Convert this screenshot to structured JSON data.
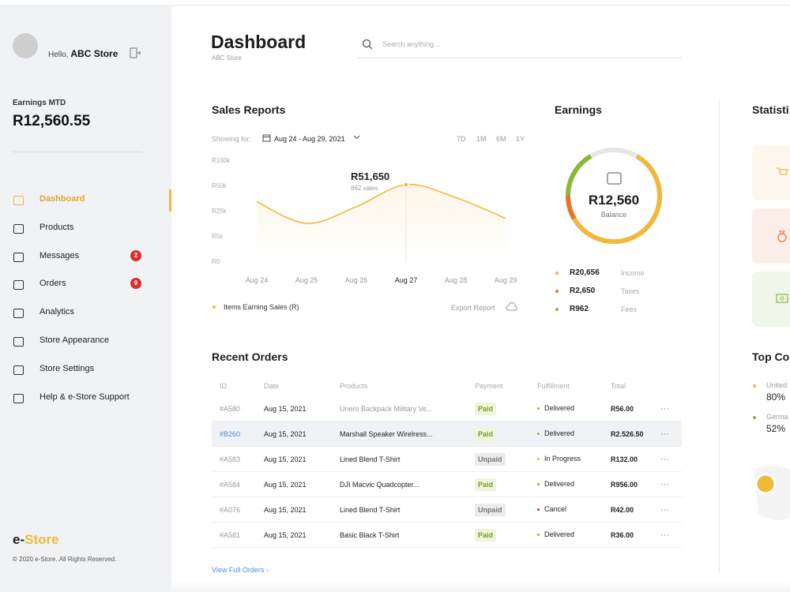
{
  "sidebar": {
    "greeting": "Hello,",
    "store": "ABC Store",
    "earnings_label": "Earnings MTD",
    "earnings_value": "R12,560.55",
    "nav": [
      {
        "label": "Dashboard"
      },
      {
        "label": "Products"
      },
      {
        "label": "Messages",
        "badge": "2"
      },
      {
        "label": "Orders",
        "badge": "9"
      },
      {
        "label": "Analytics"
      },
      {
        "label": "Store Appearance"
      },
      {
        "label": "Store Settings"
      },
      {
        "label": "Help & e-Store Support"
      }
    ],
    "brand_prefix": "e-",
    "brand_name": "Store",
    "copyright": "© 2020 e-Store..All Rights Reserved."
  },
  "header": {
    "title": "Dashboard",
    "subtitle": "ABC Store",
    "search_placeholder": "Search anything..."
  },
  "sales": {
    "title": "Sales Reports",
    "showing_for": "Showing for:",
    "date_range": "Aug 24 - Aug 29, 2021",
    "ranges": [
      "7D",
      "1M",
      "6M",
      "1Y"
    ],
    "export": "Export Report",
    "chart_data": {
      "type": "line",
      "categories": [
        "Aug 24",
        "Aug 25",
        "Aug 26",
        "Aug 27",
        "Aug 28",
        "Aug 29"
      ],
      "series": [
        {
          "name": "Items Earning Sales (R)",
          "color": "#f0b93a",
          "values": [
            34000,
            15000,
            29000,
            51650,
            38000,
            19000
          ]
        }
      ],
      "annotation": {
        "text": "R51,650",
        "subtext": "862 sales"
      },
      "ylim": [
        0,
        100000
      ],
      "yticks": [
        {
          "value": 0,
          "label": "R0"
        },
        {
          "value": 5000,
          "label": "R5k"
        },
        {
          "value": 25000,
          "label": "R25k"
        },
        {
          "value": 50000,
          "label": "R50k"
        },
        {
          "value": 100000,
          "label": "R100k"
        }
      ]
    }
  },
  "earnings": {
    "title": "Earnings",
    "balance_value": "R12,560",
    "balance_label": "Balance",
    "items": [
      {
        "value": "R20,656",
        "label": "Income",
        "color": "#f0b93a"
      },
      {
        "value": "R2,650",
        "label": "Taxes",
        "color": "#e8742a"
      },
      {
        "value": "R962",
        "label": "Fees",
        "color": "#8bb83a"
      }
    ]
  },
  "statistics": {
    "title": "Statisti"
  },
  "top_countries": {
    "title": "Top Co",
    "items": [
      {
        "name": "United",
        "value": "80%"
      },
      {
        "name": "Germa",
        "value": "52%"
      }
    ]
  },
  "orders": {
    "title": "Recent Orders",
    "columns": [
      "ID",
      "Date",
      "Products",
      "Payment",
      "Fulfillment",
      "Total"
    ],
    "row_action": "···",
    "rows": [
      [
        "#A580",
        "Aug 15, 2021",
        "Unero Backpack Military Ve...",
        "Paid",
        "Delivered",
        "R56.00"
      ],
      [
        "#B260",
        "Aug 15, 2021",
        "Marshall Speaker Wirelress...",
        "Paid",
        "Delivered",
        "R2.526.50"
      ],
      [
        "#A583",
        "Aug 15, 2021",
        "Lined Blend T-Shirt",
        "Unpaid",
        "In Progress",
        "R132.00"
      ],
      [
        "#A584",
        "Aug 15, 2021",
        "DJI Macvic Quadcopter...",
        "Paid",
        "Delivered",
        "R956.00"
      ],
      [
        "#A076",
        "Aug 15, 2021",
        "Lined Blend T-Shirt",
        "Unpaid",
        "Cancel",
        "R42.00"
      ],
      [
        "#A581",
        "Aug 15, 2021",
        "Basic Black T-Shirt",
        "Paid",
        "Delivered",
        "R36.00"
      ]
    ],
    "view_all": "View Full Orders"
  }
}
